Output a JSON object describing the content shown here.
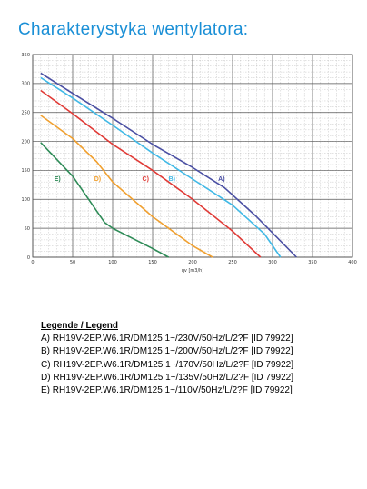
{
  "page": {
    "heading": "Charakterystyka wentylatora:"
  },
  "chart_data": {
    "type": "line",
    "xlabel": "qv [m3/h]",
    "ylabel": "",
    "xlim": [
      0,
      400
    ],
    "ylim": [
      0,
      350
    ],
    "xticks": [
      0,
      50,
      100,
      150,
      200,
      250,
      300,
      350,
      400
    ],
    "yticks": [
      0,
      50,
      100,
      150,
      200,
      250,
      300,
      350
    ],
    "grid": true,
    "series": [
      {
        "name": "A)",
        "color": "#4a4fa3",
        "x": [
          10,
          50,
          100,
          150,
          200,
          240,
          280,
          330
        ],
        "y": [
          318,
          283,
          240,
          195,
          155,
          120,
          70,
          0
        ]
      },
      {
        "name": "B)",
        "color": "#41b9e6",
        "x": [
          10,
          50,
          100,
          150,
          200,
          250,
          290,
          310
        ],
        "y": [
          310,
          275,
          228,
          180,
          135,
          90,
          40,
          0
        ]
      },
      {
        "name": "C)",
        "color": "#e03a36",
        "x": [
          10,
          50,
          100,
          150,
          200,
          250,
          285
        ],
        "y": [
          288,
          248,
          195,
          150,
          100,
          45,
          0
        ]
      },
      {
        "name": "D)",
        "color": "#f0a030",
        "x": [
          10,
          50,
          80,
          100,
          150,
          200,
          225
        ],
        "y": [
          245,
          205,
          165,
          130,
          70,
          20,
          0
        ]
      },
      {
        "name": "E)",
        "color": "#2e8b57",
        "x": [
          10,
          50,
          90,
          100,
          150,
          170
        ],
        "y": [
          198,
          140,
          60,
          50,
          15,
          0
        ]
      }
    ],
    "labels": [
      {
        "text": "A)",
        "x": 232,
        "y": 136
      },
      {
        "text": "B)",
        "x": 170,
        "y": 136
      },
      {
        "text": "C)",
        "x": 137,
        "y": 136
      },
      {
        "text": "D)",
        "x": 77,
        "y": 136
      },
      {
        "text": "E)",
        "x": 27,
        "y": 136
      }
    ]
  },
  "legend": {
    "title": "Legende / Legend",
    "items": [
      "A) RH19V-2EP.W6.1R/DM125 1~/230V/50Hz/L/2?F [ID 79922]",
      "B) RH19V-2EP.W6.1R/DM125 1~/200V/50Hz/L/2?F [ID 79922]",
      "C) RH19V-2EP.W6.1R/DM125 1~/170V/50Hz/L/2?F [ID 79922]",
      "D) RH19V-2EP.W6.1R/DM125 1~/135V/50Hz/L/2?F [ID 79922]",
      "E) RH19V-2EP.W6.1R/DM125 1~/110V/50Hz/L/2?F [ID 79922]"
    ]
  }
}
